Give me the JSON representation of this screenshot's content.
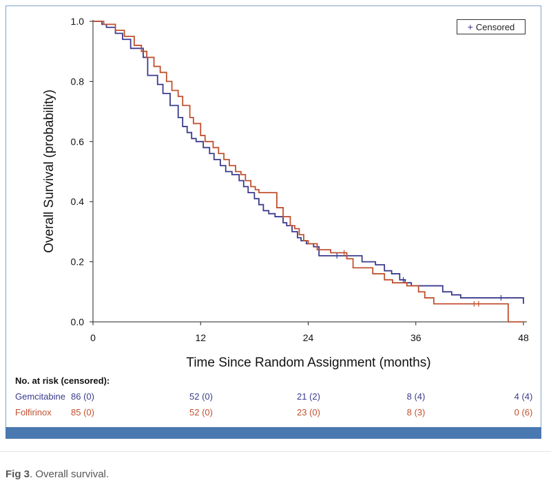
{
  "colors": {
    "gemcitabine": "#3a3a8c",
    "folfirinox": "#c0502e",
    "band": "#4a78b0"
  },
  "chart_data": {
    "type": "line",
    "subtype": "kaplan-meier",
    "xlabel": "Time Since Random Assignment (months)",
    "ylabel": "Overall Survival (probability)",
    "xlim": [
      0,
      48
    ],
    "ylim": [
      0,
      1
    ],
    "x_ticks": [
      "0",
      "12",
      "24",
      "36",
      "48"
    ],
    "y_ticks": [
      "0.0",
      "0.2",
      "0.4",
      "0.6",
      "0.8",
      "1.0"
    ],
    "legend": {
      "label": "Censored",
      "symbol": "+",
      "placement": "top-right"
    },
    "series": [
      {
        "name": "Gemcitabine",
        "color": "#3a3a8c",
        "x": [
          0,
          1.0,
          1.5,
          2.5,
          3.3,
          4.2,
          5.6,
          6.1,
          7.2,
          7.8,
          8.6,
          9.5,
          10.0,
          10.5,
          11.0,
          11.5,
          12.3,
          13.0,
          13.5,
          14.2,
          14.8,
          15.5,
          16.3,
          16.8,
          17.3,
          18.0,
          18.5,
          19.0,
          19.6,
          20.3,
          21.2,
          21.6,
          22.2,
          22.8,
          23.2,
          23.8,
          24.6,
          25.2,
          26.5,
          27.2,
          30.0,
          31.5,
          32.5,
          33.3,
          34.2,
          34.8,
          35.5,
          39.0,
          40.0,
          41.0,
          48.0
        ],
        "y": [
          1.0,
          0.99,
          0.98,
          0.96,
          0.94,
          0.91,
          0.88,
          0.82,
          0.79,
          0.76,
          0.72,
          0.68,
          0.65,
          0.63,
          0.61,
          0.6,
          0.58,
          0.56,
          0.54,
          0.52,
          0.5,
          0.49,
          0.47,
          0.45,
          0.43,
          0.41,
          0.39,
          0.37,
          0.36,
          0.35,
          0.33,
          0.32,
          0.3,
          0.28,
          0.27,
          0.26,
          0.25,
          0.22,
          0.22,
          0.22,
          0.2,
          0.19,
          0.17,
          0.16,
          0.14,
          0.13,
          0.12,
          0.1,
          0.09,
          0.08,
          0.06
        ],
        "censored_x": [
          27.2,
          34.6,
          45.5
        ]
      },
      {
        "name": "Folfirinox",
        "color": "#c0502e",
        "x": [
          0,
          1.2,
          2.5,
          3.5,
          4.6,
          5.4,
          6.0,
          6.8,
          7.5,
          8.2,
          8.8,
          9.5,
          10.0,
          10.8,
          11.2,
          12.0,
          12.5,
          13.4,
          14.0,
          14.6,
          15.2,
          15.9,
          16.5,
          17.0,
          17.6,
          18.1,
          18.5,
          19.0,
          19.5,
          20.0,
          20.5,
          21.2,
          22.0,
          22.5,
          23.0,
          23.5,
          24.0,
          25.0,
          26.5,
          28.3,
          29.0,
          31.2,
          32.5,
          33.4,
          35.0,
          36.3,
          37.0,
          38.0,
          42.0,
          46.3
        ],
        "y": [
          1.0,
          0.99,
          0.97,
          0.95,
          0.92,
          0.9,
          0.88,
          0.85,
          0.83,
          0.8,
          0.77,
          0.75,
          0.72,
          0.68,
          0.66,
          0.62,
          0.6,
          0.58,
          0.56,
          0.54,
          0.52,
          0.5,
          0.49,
          0.47,
          0.45,
          0.44,
          0.43,
          0.43,
          0.43,
          0.43,
          0.38,
          0.35,
          0.32,
          0.31,
          0.29,
          0.27,
          0.26,
          0.24,
          0.23,
          0.21,
          0.18,
          0.16,
          0.14,
          0.13,
          0.12,
          0.1,
          0.08,
          0.06,
          0.06,
          0.0
        ],
        "censored_x": [
          28.0,
          42.5,
          43.0
        ]
      }
    ]
  },
  "risk_table": {
    "title": "No. at risk (censored):",
    "rows": [
      {
        "arm": "Gemcitabine",
        "values": [
          "86 (0)",
          "52 (0)",
          "21 (2)",
          "8 (4)",
          "4 (4)"
        ]
      },
      {
        "arm": "Folfirinox",
        "values": [
          "85 (0)",
          "52 (0)",
          "23 (0)",
          "8 (3)",
          "0 (6)"
        ]
      }
    ]
  },
  "caption": {
    "label": "Fig 3",
    "text": ". Overall survival."
  }
}
